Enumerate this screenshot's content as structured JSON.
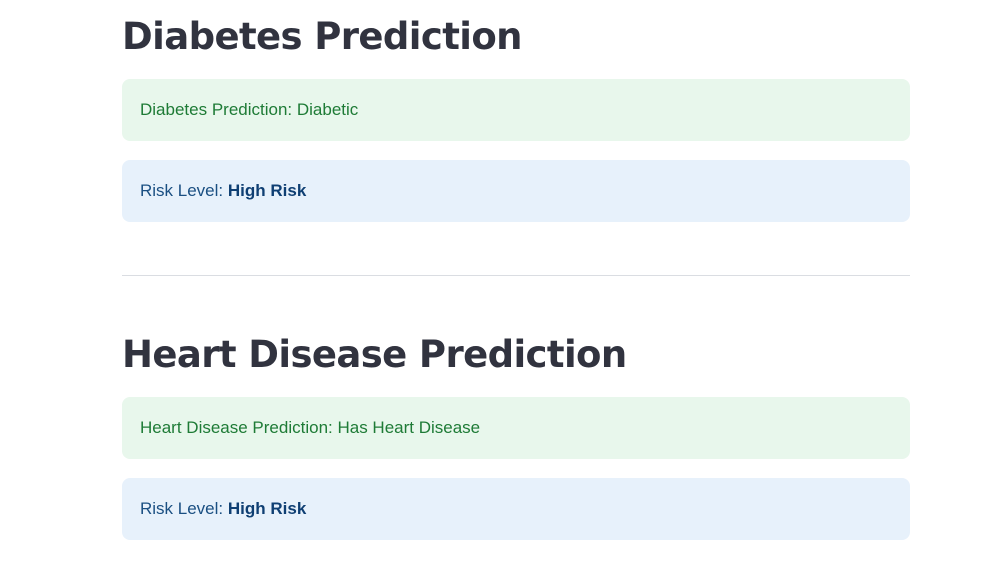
{
  "diabetes": {
    "title": "Diabetes Prediction",
    "prediction_text": "Diabetes Prediction: Diabetic",
    "risk_label": "Risk Level: ",
    "risk_value": "High Risk"
  },
  "heart": {
    "title": "Heart Disease Prediction",
    "prediction_text": "Heart Disease Prediction: Has Heart Disease",
    "risk_label": "Risk Level: ",
    "risk_value": "High Risk"
  },
  "colors": {
    "success_bg": "#e8f7ec",
    "success_text": "#1e7b36",
    "info_bg": "#e7f1fb",
    "info_text": "#1a4f82",
    "heading_text": "#31333f"
  }
}
